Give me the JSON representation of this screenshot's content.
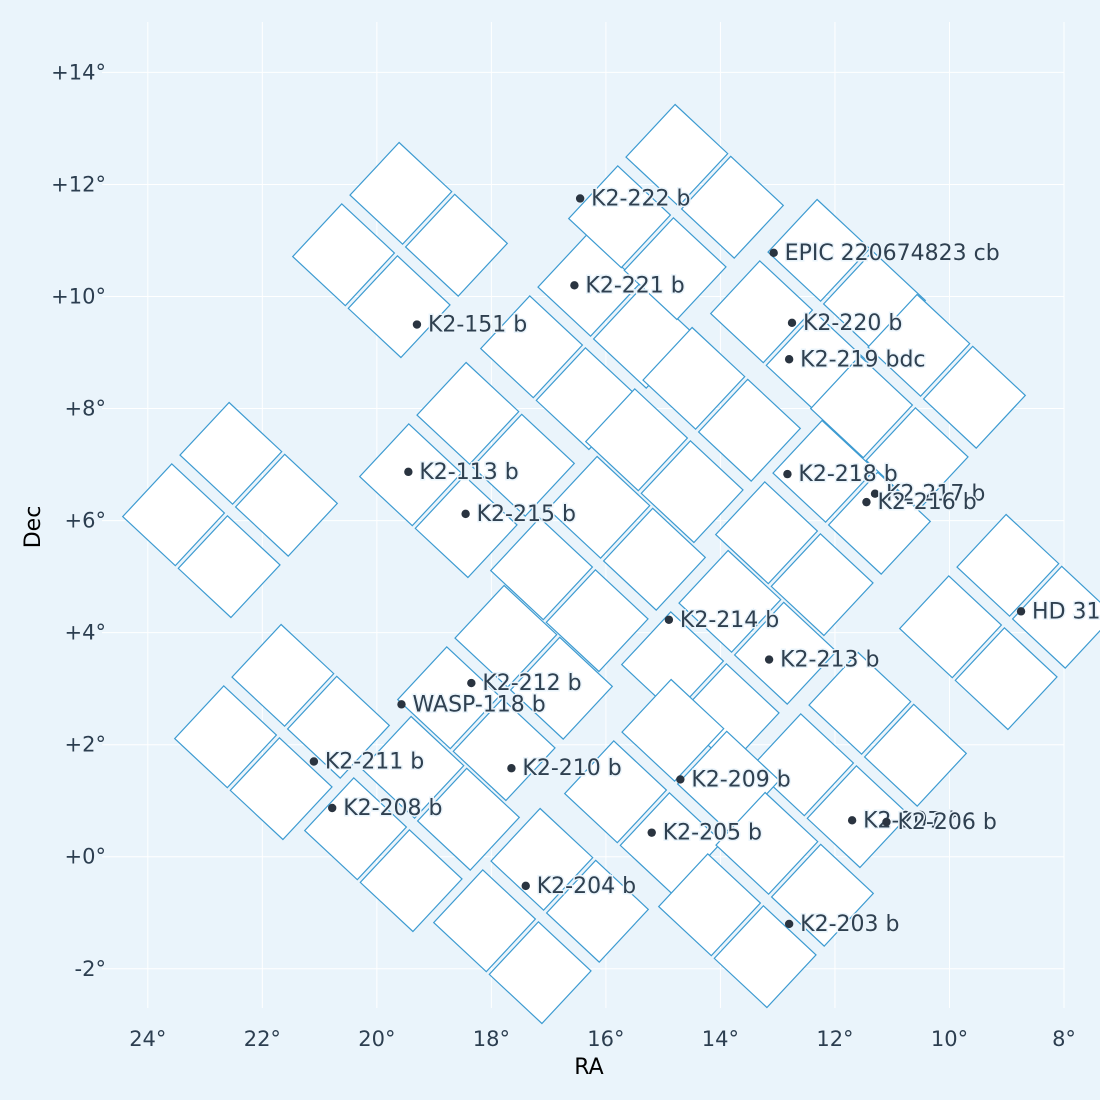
{
  "chart_data": {
    "type": "scatter",
    "xlabel": "RA",
    "ylabel": "Dec",
    "xlim": [
      24.8,
      8
    ],
    "ylim": [
      -2.7,
      14.9
    ],
    "x_ticks": [
      {
        "value": 24,
        "label": "24°"
      },
      {
        "value": 22,
        "label": "22°"
      },
      {
        "value": 20,
        "label": "20°"
      },
      {
        "value": 18,
        "label": "18°"
      },
      {
        "value": 16,
        "label": "16°"
      },
      {
        "value": 14,
        "label": "14°"
      },
      {
        "value": 12,
        "label": "12°"
      },
      {
        "value": 10,
        "label": "10°"
      },
      {
        "value": 8,
        "label": "8°"
      }
    ],
    "y_ticks": [
      {
        "value": 14,
        "label": "+14°"
      },
      {
        "value": 12,
        "label": "+12°"
      },
      {
        "value": 10,
        "label": "+10°"
      },
      {
        "value": 8,
        "label": "+8°"
      },
      {
        "value": 6,
        "label": "+6°"
      },
      {
        "value": 4,
        "label": "+4°"
      },
      {
        "value": 2,
        "label": "+2°"
      },
      {
        "value": 0,
        "label": "+0°"
      },
      {
        "value": -2,
        "label": "-2°"
      }
    ],
    "grid": true,
    "colors": {
      "ccd_edge": "#3d9bd1",
      "ccd_fill": "#ffffff",
      "point": "#2a3440",
      "background": "#eaf4fb",
      "grid": "#ffffff"
    },
    "planets": [
      {
        "name": "K2-222 b",
        "ra": 16.45,
        "dec": 11.75
      },
      {
        "name": "EPIC 220674823 cb",
        "ra": 13.07,
        "dec": 10.78
      },
      {
        "name": "K2-221 b",
        "ra": 16.55,
        "dec": 10.2
      },
      {
        "name": "K2-220 b",
        "ra": 12.75,
        "dec": 9.53
      },
      {
        "name": "K2-151 b",
        "ra": 19.3,
        "dec": 9.5
      },
      {
        "name": "K2-219 bdc",
        "ra": 12.8,
        "dec": 8.88
      },
      {
        "name": "K2-113 b",
        "ra": 19.45,
        "dec": 6.87
      },
      {
        "name": "K2-218 b",
        "ra": 12.83,
        "dec": 6.83
      },
      {
        "name": "K2-217 b",
        "ra": 11.3,
        "dec": 6.48
      },
      {
        "name": "K2-216 b",
        "ra": 11.45,
        "dec": 6.33
      },
      {
        "name": "K2-215 b",
        "ra": 18.45,
        "dec": 6.12
      },
      {
        "name": "HD 31",
        "ra": 8.75,
        "dec": 4.38
      },
      {
        "name": "K2-214 b",
        "ra": 14.9,
        "dec": 4.23
      },
      {
        "name": "K2-213 b",
        "ra": 13.15,
        "dec": 3.52
      },
      {
        "name": "K2-212 b",
        "ra": 18.35,
        "dec": 3.1
      },
      {
        "name": "WASP-118 b",
        "ra": 19.57,
        "dec": 2.72
      },
      {
        "name": "K2-211 b",
        "ra": 21.1,
        "dec": 1.7
      },
      {
        "name": "K2-210 b",
        "ra": 17.65,
        "dec": 1.58
      },
      {
        "name": "K2-209 b",
        "ra": 14.7,
        "dec": 1.38
      },
      {
        "name": "K2-208 b",
        "ra": 20.78,
        "dec": 0.87
      },
      {
        "name": "K2-207 b",
        "ra": 11.7,
        "dec": 0.65
      },
      {
        "name": "K2-206 b",
        "ra": 11.1,
        "dec": 0.62
      },
      {
        "name": "K2-205 b",
        "ra": 15.2,
        "dec": 0.43
      },
      {
        "name": "K2-204 b",
        "ra": 17.4,
        "dec": -0.52
      },
      {
        "name": "K2-203 b",
        "ra": 12.8,
        "dec": -1.2
      }
    ]
  }
}
